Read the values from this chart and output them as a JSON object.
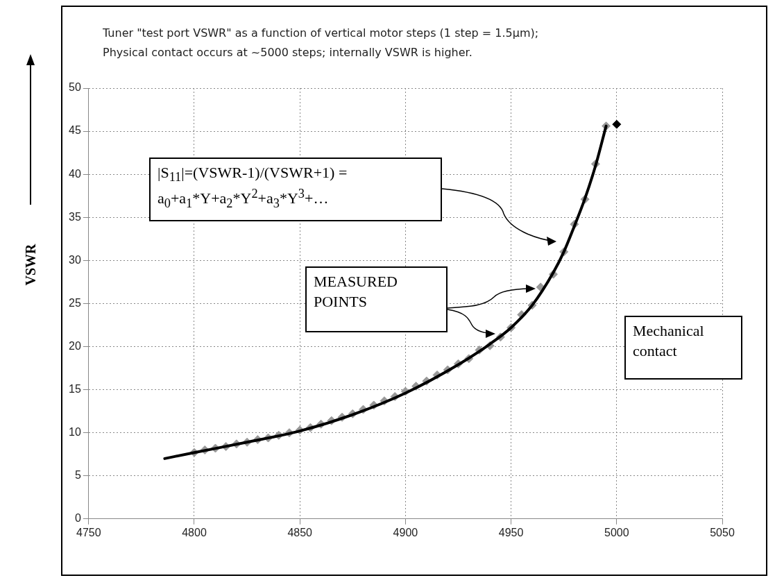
{
  "chart_data": {
    "type": "scatter",
    "title": "Tuner \"test port VSWR\" as a function of vertical motor steps (1 step = 1.5µm);",
    "subtitle": "Physical contact  occurs at ~5000 steps; internally VSWR is higher.",
    "ylabel": "VSWR",
    "annotations": [
      "|S$_{11}$|=(VSWR-1)/(VSWR+1) = a$_{0}$+a$_{1}$*Y+a$_{2}$*Y$^{2}$+a$_{3}$*Y$^{3}$+…",
      "MEASURED POINTS",
      "Mechanical contact"
    ],
    "series": [
      {
        "color": "#999999",
        "x": [
          4800,
          4805,
          4810,
          4815,
          4820,
          4825,
          4830,
          4835,
          4840,
          4845,
          4850,
          4855,
          4860,
          4865,
          4870,
          4875,
          4880,
          4885,
          4890,
          4895,
          4900,
          4905,
          4910,
          4915,
          4920,
          4925,
          4930,
          4935,
          4940,
          4945,
          4950,
          4955,
          4960,
          4964,
          4970,
          4975,
          4980,
          4985,
          4990,
          4995
        ],
        "values": [
          7.7,
          8.0,
          8.2,
          8.4,
          8.7,
          8.9,
          9.2,
          9.4,
          9.7,
          10.0,
          10.3,
          10.6,
          11.0,
          11.4,
          11.8,
          12.2,
          12.7,
          13.2,
          13.7,
          14.2,
          14.8,
          15.4,
          16.0,
          16.7,
          17.3,
          18.0,
          18.6,
          19.6,
          20.1,
          21.1,
          22.2,
          23.7,
          24.8,
          26.9,
          28.4,
          31.0,
          34.2,
          37.1,
          41.2,
          45.6
        ]
      },
      {
        "color": "#000000",
        "x": [
          5000
        ],
        "values": [
          45.8
        ]
      },
      {
        "type": "line",
        "marker": "none",
        "color": "#000000",
        "x": [
          4786,
          4800,
          4825,
          4850,
          4875,
          4900,
          4925,
          4940,
          4950,
          4960,
          4970,
          4975,
          4980,
          4985,
          4990,
          4995
        ],
        "values": [
          7.0,
          7.7,
          8.9,
          10.2,
          12.1,
          14.6,
          17.9,
          20.3,
          22.2,
          24.8,
          28.6,
          31.0,
          34.0,
          37.2,
          41.0,
          45.6
        ]
      }
    ],
    "xlim": [
      4750,
      5050
    ],
    "xticks": [
      4750,
      4800,
      4850,
      4900,
      4950,
      5000,
      5050
    ],
    "ylim": [
      0,
      50
    ],
    "yticks": [
      0,
      5,
      10,
      15,
      20,
      25,
      30,
      35,
      40,
      45,
      50
    ],
    "grid": true,
    "legend": false,
    "marker": "diamond"
  }
}
